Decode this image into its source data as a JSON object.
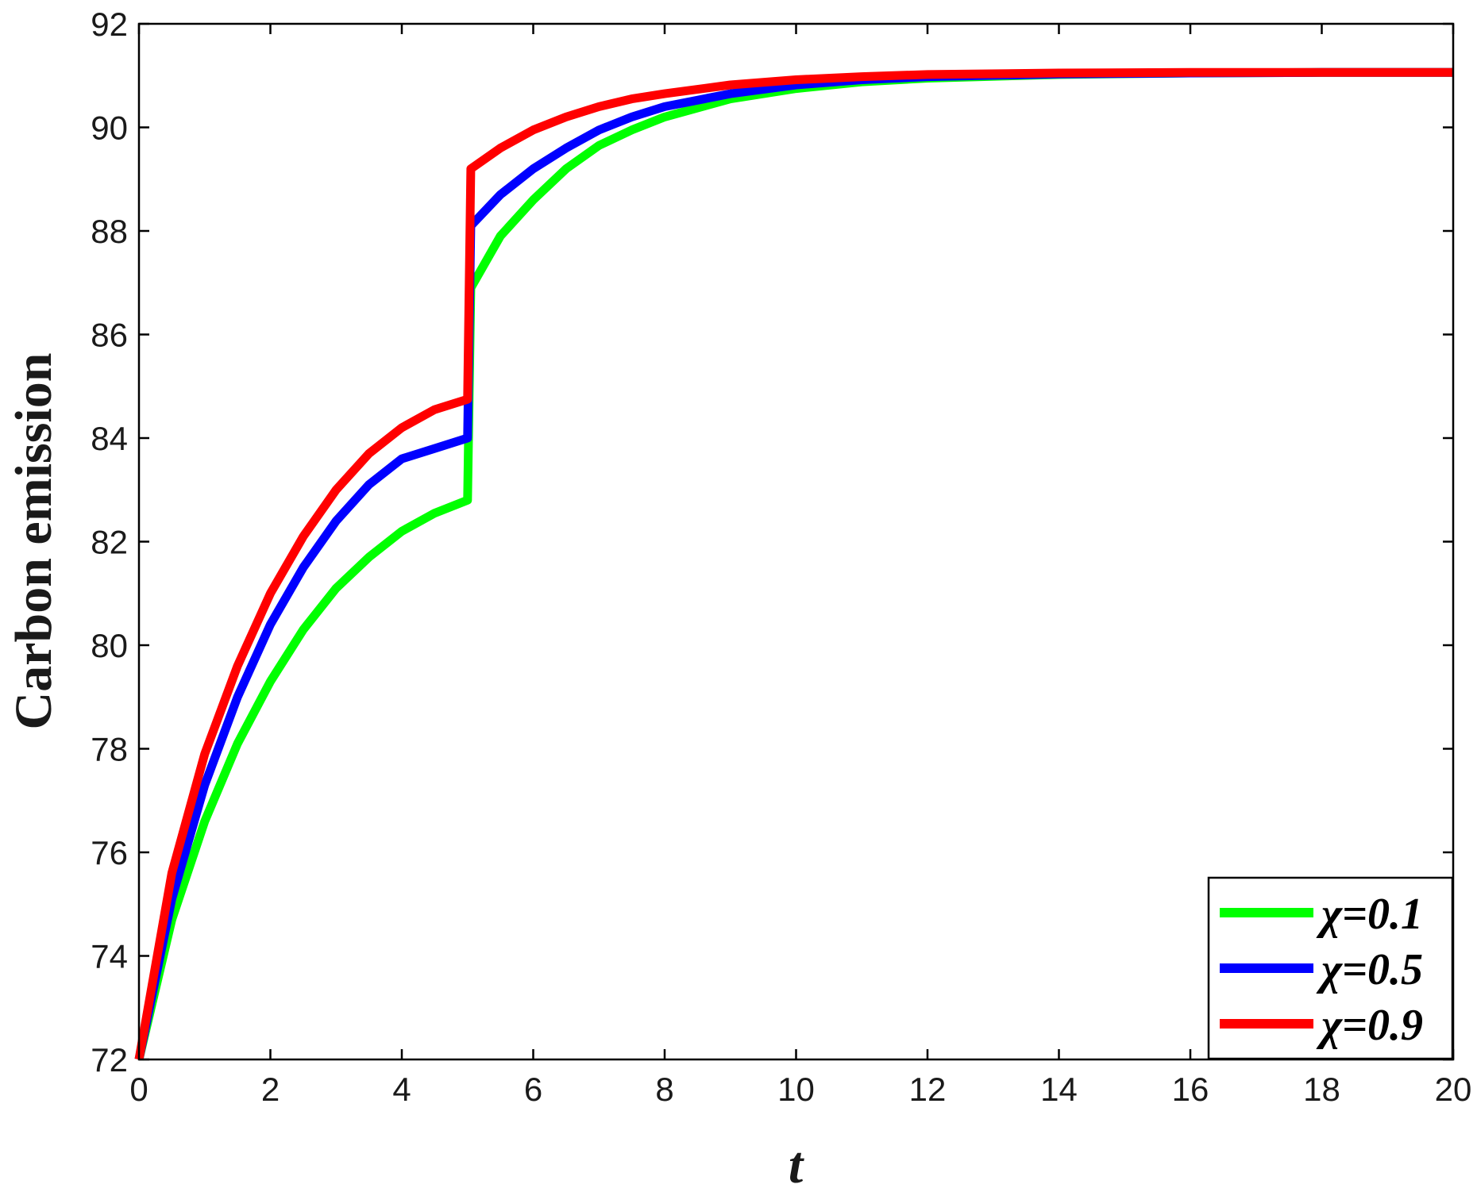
{
  "chart_data": {
    "type": "line",
    "xlabel": "t",
    "ylabel": "Carbon emission",
    "xlim": [
      0,
      20
    ],
    "ylim": [
      72,
      92
    ],
    "xticks": [
      "0",
      "2",
      "4",
      "6",
      "8",
      "10",
      "12",
      "14",
      "16",
      "18",
      "20"
    ],
    "yticks": [
      "72",
      "74",
      "76",
      "78",
      "80",
      "82",
      "84",
      "86",
      "88",
      "90",
      "92"
    ],
    "grid": false,
    "legend_position": "bottom-right",
    "series": [
      {
        "name": "χ=0.1",
        "color": "#00ff00",
        "x": [
          0,
          0.5,
          1,
          1.5,
          2,
          2.5,
          3,
          3.5,
          4,
          4.5,
          5,
          5.05,
          5.5,
          6,
          6.5,
          7,
          7.5,
          8,
          9,
          10,
          11,
          12,
          14,
          16,
          18,
          20
        ],
        "y": [
          72,
          74.7,
          76.6,
          78.1,
          79.3,
          80.3,
          81.1,
          81.7,
          82.2,
          82.55,
          82.8,
          86.9,
          87.9,
          88.6,
          89.2,
          89.65,
          89.95,
          90.2,
          90.55,
          90.75,
          90.88,
          90.95,
          91.02,
          91.05,
          91.06,
          91.06
        ]
      },
      {
        "name": "χ=0.5",
        "color": "#0000ff",
        "x": [
          0,
          0.5,
          1,
          1.5,
          2,
          2.5,
          3,
          3.5,
          4,
          4.5,
          5,
          5.05,
          5.5,
          6,
          6.5,
          7,
          7.5,
          8,
          9,
          10,
          11,
          12,
          14,
          16,
          18,
          20
        ],
        "y": [
          72,
          75.1,
          77.3,
          79.0,
          80.4,
          81.5,
          82.4,
          83.1,
          83.6,
          83.8,
          84.0,
          88.1,
          88.7,
          89.2,
          89.6,
          89.95,
          90.2,
          90.4,
          90.65,
          90.82,
          90.92,
          90.98,
          91.03,
          91.05,
          91.06,
          91.06
        ]
      },
      {
        "name": "χ=0.9",
        "color": "#ff0000",
        "x": [
          0,
          0.5,
          1,
          1.5,
          2,
          2.5,
          3,
          3.5,
          4,
          4.5,
          5,
          5.05,
          5.5,
          6,
          6.5,
          7,
          7.5,
          8,
          9,
          10,
          11,
          12,
          14,
          16,
          18,
          20
        ],
        "y": [
          72,
          75.6,
          77.9,
          79.6,
          81.0,
          82.1,
          83.0,
          83.7,
          84.2,
          84.55,
          84.75,
          89.2,
          89.6,
          89.95,
          90.2,
          90.4,
          90.55,
          90.65,
          90.82,
          90.92,
          90.98,
          91.02,
          91.05,
          91.06,
          91.06,
          91.06
        ]
      }
    ]
  }
}
